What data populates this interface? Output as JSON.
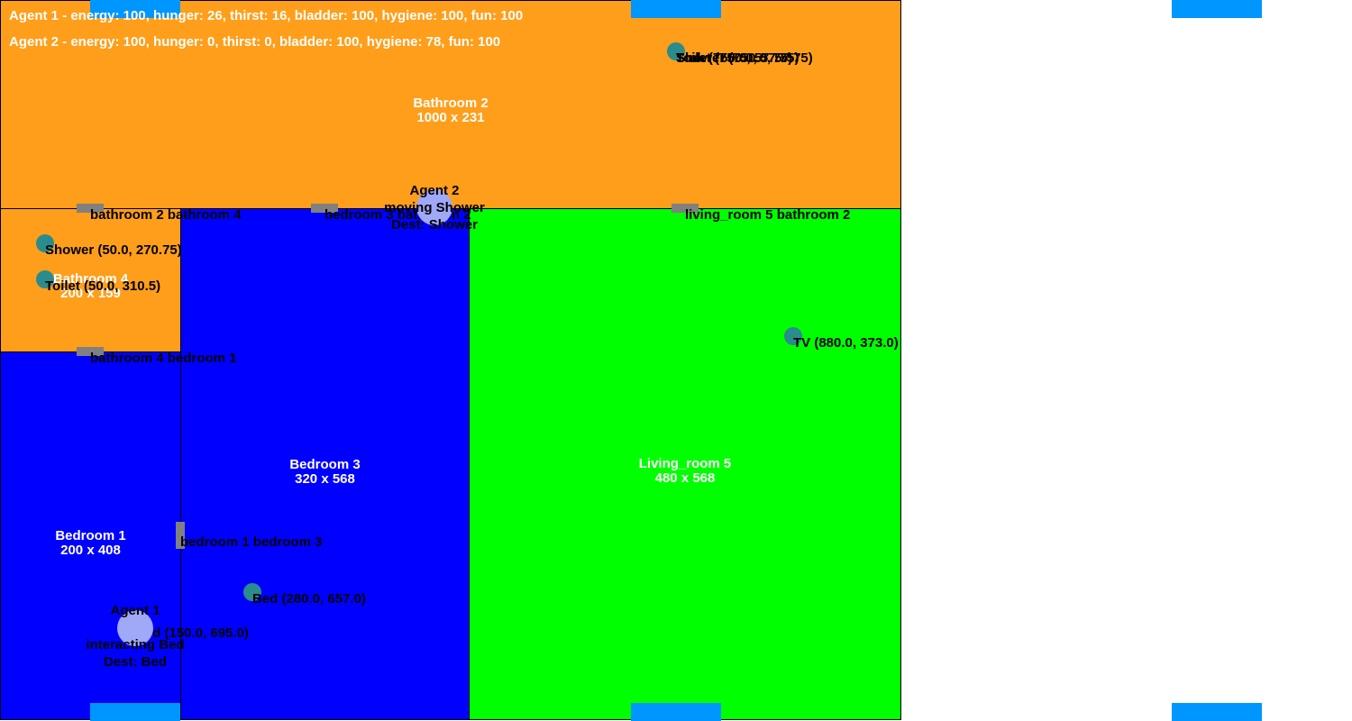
{
  "colors": {
    "bathroom": "#ff9e1a",
    "bedroom": "#0000ff",
    "living_room": "#00ff00",
    "door": "#808080",
    "object": "#2a8c8c",
    "agent": "#a0a8f8",
    "window": "#0096ff"
  },
  "status": {
    "agent1": "Agent 1 - energy: 100, hunger: 26, thirst: 16, bladder: 100, hygiene: 100, fun: 100",
    "agent2": "Agent 2 - energy: 100, hunger: 0, thirst: 0, bladder: 100, hygiene: 78, fun: 100"
  },
  "rooms": {
    "bathroom2": {
      "name": "Bathroom 2",
      "size": "1000 x 231"
    },
    "bathroom4": {
      "name": "Bathroom 4",
      "size": "200 x 159"
    },
    "bedroom1": {
      "name": "Bedroom 1",
      "size": "200 x 408"
    },
    "bedroom3": {
      "name": "Bedroom 3",
      "size": "320 x 568"
    },
    "living_room5": {
      "name": "Living_room 5",
      "size": "480 x 568"
    }
  },
  "doors": {
    "d1": "bathroom 2 bathroom 4",
    "d2": "bedroom 3 bathroom 2",
    "d3": "living_room 5 bathroom 2",
    "d4": "bathroom 4 bedroom 1",
    "d5": "bedroom 1 bedroom 3"
  },
  "objects": {
    "sink": "Sink (750.0, 57.75)",
    "toilet2": "Toilet (750.0, 57.75)",
    "shower2": "Shower (750.0, 57.75)",
    "shower4": "Shower (50.0, 270.75)",
    "toilet4": "Toilet (50.0, 310.5)",
    "tv": "TV (880.0, 373.0)",
    "bed3": "Bed (280.0, 657.0)",
    "bed1": "Bed (150.0, 695.0)"
  },
  "agents": {
    "agent1": {
      "name": "Agent 1",
      "state": "interacting Bed",
      "dest": "Dest: Bed"
    },
    "agent2": {
      "name": "Agent 2",
      "state": "moving Shower",
      "dest": "Dest: Shower"
    }
  }
}
